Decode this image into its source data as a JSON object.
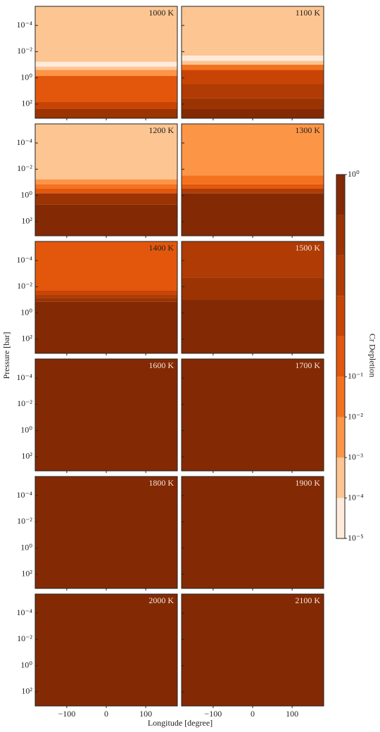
{
  "chart_data": {
    "type": "contour",
    "xlabel": "Longitude [degree]",
    "ylabel": "Pressure [bar]",
    "xlim": [
      -180,
      180
    ],
    "xticks": [
      {
        "value": -100,
        "label": "−100"
      },
      0,
      100
    ],
    "ylim": [
      1200,
      3.5e-06
    ],
    "log_y": true,
    "yticks": [
      {
        "value": 0.0001,
        "label": "10⁻⁴"
      },
      {
        "value": 0.01,
        "label": "10⁻²"
      },
      {
        "value": 1,
        "label": "10⁰"
      },
      {
        "value": 100,
        "label": "10²"
      }
    ],
    "colorbar": {
      "label": "Cr Depletion",
      "levels": [
        1e-05,
        0.0001,
        0.001,
        0.01,
        0.1,
        0.28,
        0.46,
        0.64,
        0.82,
        1
      ],
      "colors": [
        "#feebdc",
        "#fdc591",
        "#fd9547",
        "#f4711e",
        "#e2570c",
        "#c84405",
        "#b03b04",
        "#9b3303",
        "#832a04"
      ],
      "ticks": [
        {
          "value": 1,
          "label": "10⁰"
        },
        {
          "value": 0.1,
          "label": "10⁻¹"
        },
        {
          "value": 0.01,
          "label": "10⁻²"
        },
        {
          "value": 0.001,
          "label": "10⁻³"
        },
        {
          "value": 0.0001,
          "label": "10⁻⁴"
        },
        {
          "value": 1e-05,
          "label": "10⁻⁵"
        }
      ]
    },
    "panels": [
      {
        "title": "1000 K",
        "bands": [
          {
            "depletion": 0.0001,
            "p_bottom": 0.06
          },
          {
            "depletion": 1e-05,
            "p_bottom": 0.14
          },
          {
            "depletion": 0.0001,
            "p_bottom": 0.25
          },
          {
            "depletion": 0.001,
            "p_bottom": 0.7
          },
          {
            "depletion": 0.1,
            "p_bottom": 70
          },
          {
            "depletion": 0.28,
            "p_bottom": 240
          },
          {
            "depletion": 0.64,
            "p_bottom": 1200
          }
        ]
      },
      {
        "title": "1100 K",
        "bands": [
          {
            "depletion": 0.0001,
            "p_bottom": 0.02
          },
          {
            "depletion": 1e-05,
            "p_bottom": 0.05
          },
          {
            "depletion": 0.0001,
            "p_bottom": 0.1
          },
          {
            "depletion": 0.01,
            "p_bottom": 0.25
          },
          {
            "depletion": 0.28,
            "p_bottom": 3
          },
          {
            "depletion": 0.46,
            "p_bottom": 37
          },
          {
            "depletion": 0.64,
            "p_bottom": 240
          },
          {
            "depletion": 0.82,
            "p_bottom": 1200
          }
        ]
      },
      {
        "title": "1200 K",
        "bands": [
          {
            "depletion": 0.0001,
            "p_bottom": 0.06
          },
          {
            "depletion": 0.001,
            "p_bottom": 0.14
          },
          {
            "depletion": 0.01,
            "p_bottom": 0.3
          },
          {
            "depletion": 0.1,
            "p_bottom": 0.7
          },
          {
            "depletion": 0.64,
            "p_bottom": 5
          },
          {
            "depletion": 0.82,
            "p_bottom": 1200
          }
        ]
      },
      {
        "title": "1300 K",
        "bands": [
          {
            "depletion": 0.001,
            "p_bottom": 0.03
          },
          {
            "depletion": 0.01,
            "p_bottom": 0.14
          },
          {
            "depletion": 0.1,
            "p_bottom": 0.3
          },
          {
            "depletion": 0.46,
            "p_bottom": 0.7
          },
          {
            "depletion": 0.82,
            "p_bottom": 1200
          }
        ]
      },
      {
        "title": "1400 K",
        "bands": [
          {
            "depletion": 0.1,
            "p_bottom": 0.02
          },
          {
            "depletion": 0.28,
            "p_bottom": 0.04
          },
          {
            "depletion": 0.46,
            "p_bottom": 0.07
          },
          {
            "depletion": 0.64,
            "p_bottom": 0.14
          },
          {
            "depletion": 0.82,
            "p_bottom": 1200
          }
        ]
      },
      {
        "title": "1500 K",
        "bands": [
          {
            "depletion": 0.46,
            "p_bottom": 0.002
          },
          {
            "depletion": 0.64,
            "p_bottom": 0.1
          },
          {
            "depletion": 0.82,
            "p_bottom": 1200
          }
        ]
      },
      {
        "title": "1600 K",
        "bands": [
          {
            "depletion": 0.82,
            "p_bottom": 1200
          }
        ]
      },
      {
        "title": "1700 K",
        "bands": [
          {
            "depletion": 0.82,
            "p_bottom": 1200
          }
        ]
      },
      {
        "title": "1800 K",
        "bands": [
          {
            "depletion": 0.82,
            "p_bottom": 1200
          }
        ]
      },
      {
        "title": "1900 K",
        "bands": [
          {
            "depletion": 0.82,
            "p_bottom": 1200
          }
        ]
      },
      {
        "title": "2000 K",
        "bands": [
          {
            "depletion": 0.82,
            "p_bottom": 1200
          }
        ]
      },
      {
        "title": "2100 K",
        "bands": [
          {
            "depletion": 0.82,
            "p_bottom": 1200
          }
        ]
      }
    ]
  }
}
